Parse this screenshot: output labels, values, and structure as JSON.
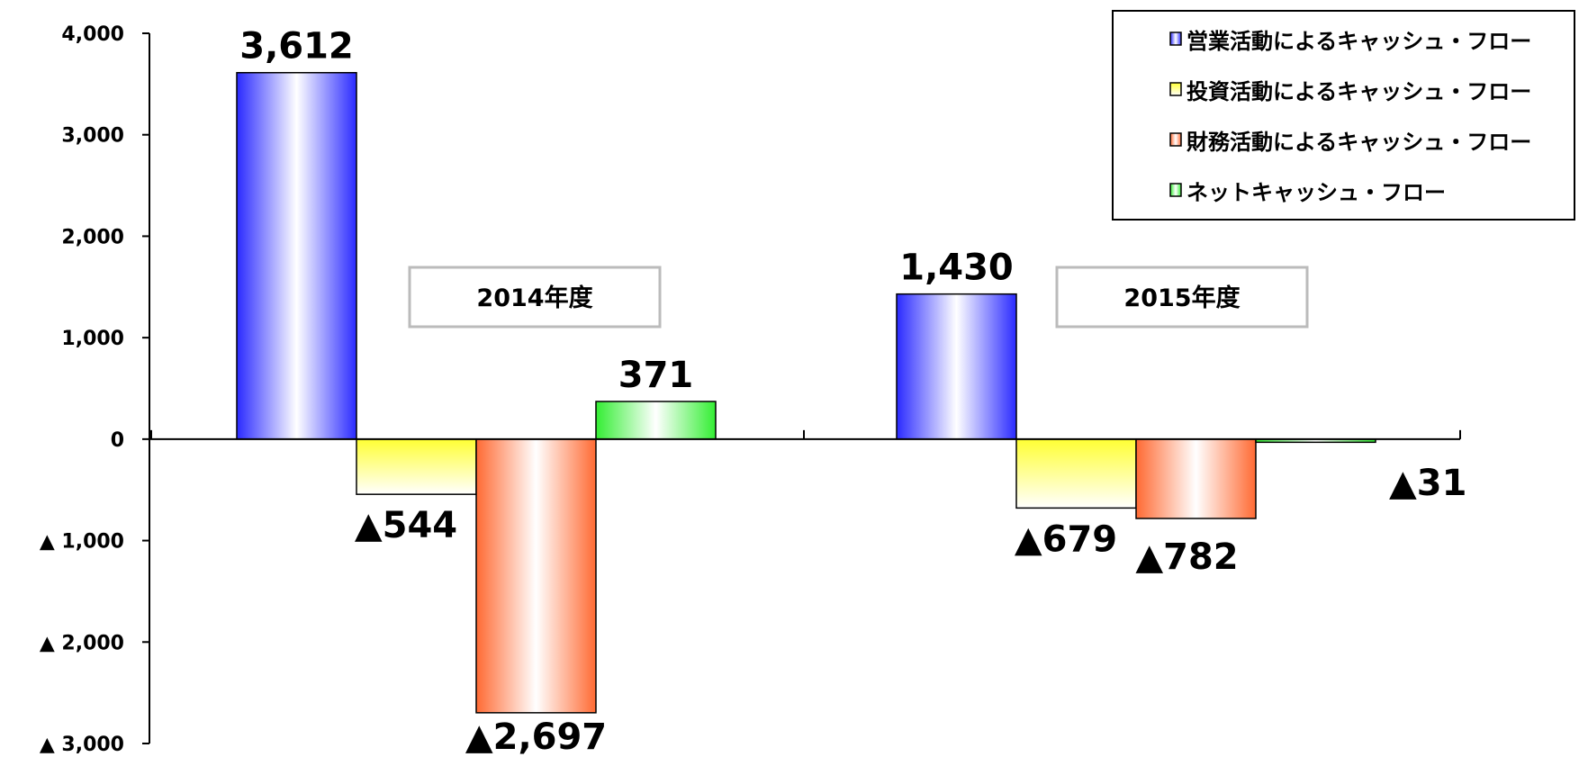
{
  "chart_data": {
    "type": "bar",
    "categories": [
      "2014年度",
      "2015年度"
    ],
    "series": [
      {
        "name": "営業活動によるキャッシュ・フロー",
        "values": [
          3612,
          1430
        ],
        "labels": [
          "3,612",
          "1,430"
        ],
        "color": "#2a2aff",
        "gradient": [
          "#2a2aff",
          "#ffffff"
        ]
      },
      {
        "name": "投資活動によるキャッシュ・フロー",
        "values": [
          -544,
          -679
        ],
        "labels": [
          "▲544",
          "▲679"
        ],
        "color": "#ffff33",
        "gradient": [
          "#ffff33",
          "#ffffff"
        ]
      },
      {
        "name": "財務活動によるキャッシュ・フロー",
        "values": [
          -2697,
          -782
        ],
        "labels": [
          "▲2,697",
          "▲782"
        ],
        "color": "#ff6a33",
        "gradient": [
          "#ff6a33",
          "#ffffff"
        ]
      },
      {
        "name": "ネットキャッシュ・フロー",
        "values": [
          371,
          -31
        ],
        "labels": [
          "371",
          "▲31"
        ],
        "color": "#33ee33",
        "gradient": [
          "#33ee33",
          "#ffffff"
        ]
      }
    ],
    "ylim": [
      -3000,
      4000
    ],
    "yticks": [
      4000,
      3000,
      2000,
      1000,
      0,
      -1000,
      -2000,
      -3000
    ],
    "ytick_labels": [
      "4,000",
      "3,000",
      "2,000",
      "1,000",
      "0",
      "▲ 1,000",
      "▲ 2,000",
      "▲ 3,000"
    ],
    "legend": "top-right",
    "grid": false
  }
}
